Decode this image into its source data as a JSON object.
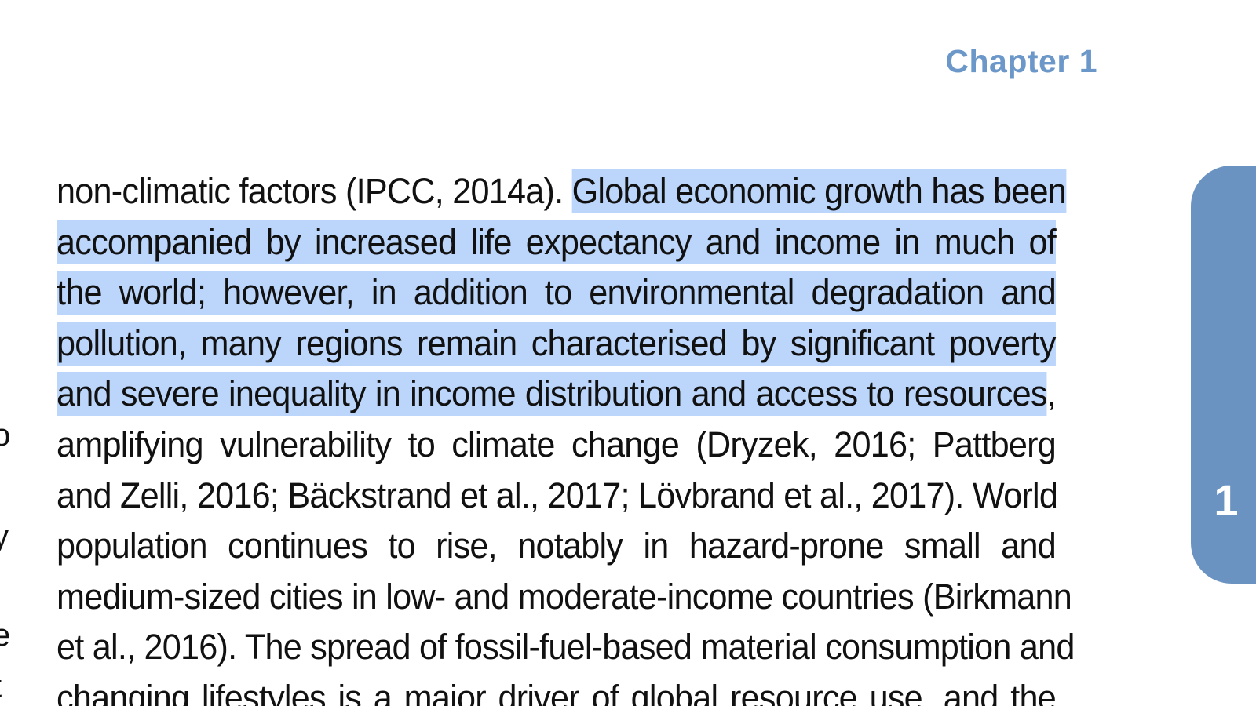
{
  "header": {
    "chapter_label": "Chapter 1"
  },
  "side_tab": {
    "number": "1",
    "color": "#6a93c2"
  },
  "colors": {
    "chapter_heading": "#6b97c9",
    "selection_highlight": "#bcd6fb",
    "text": "#111111"
  },
  "body": {
    "lines": [
      {
        "plain": "non-climatic factors (IPCC, 2014a). ",
        "highlight": "Global economic growth has been"
      },
      {
        "plain": "",
        "highlight": "accompanied by increased life expectancy and income in much of"
      },
      {
        "plain": "",
        "highlight": "the world; however, in addition to environmental degradation and"
      },
      {
        "plain": "",
        "highlight": "pollution, many regions remain characterised by significant poverty"
      },
      {
        "plain": "",
        "highlight": "and severe inequality in income distribution and access to resources",
        "tail": ","
      },
      {
        "plain": "amplifying vulnerability to climate change (Dryzek, 2016; Pattberg",
        "highlight": ""
      },
      {
        "plain": "and Zelli, 2016; Bäckstrand et al., 2017; Lövbrand et al., 2017). World",
        "highlight": ""
      },
      {
        "plain": "population continues to rise, notably in hazard-prone small and",
        "highlight": ""
      },
      {
        "plain": "medium-sized cities in low- and moderate-income countries (Birkmann",
        "highlight": ""
      },
      {
        "plain": "et al., 2016). The spread of fossil-fuel-based material consumption and",
        "highlight": ""
      },
      {
        "plain": "changing lifestyles is a major driver of global resource use, and the",
        "highlight": ""
      }
    ]
  },
  "previous_column_edge": {
    "glyphs": [
      "o",
      "y",
      "l",
      "e",
      "t"
    ]
  }
}
